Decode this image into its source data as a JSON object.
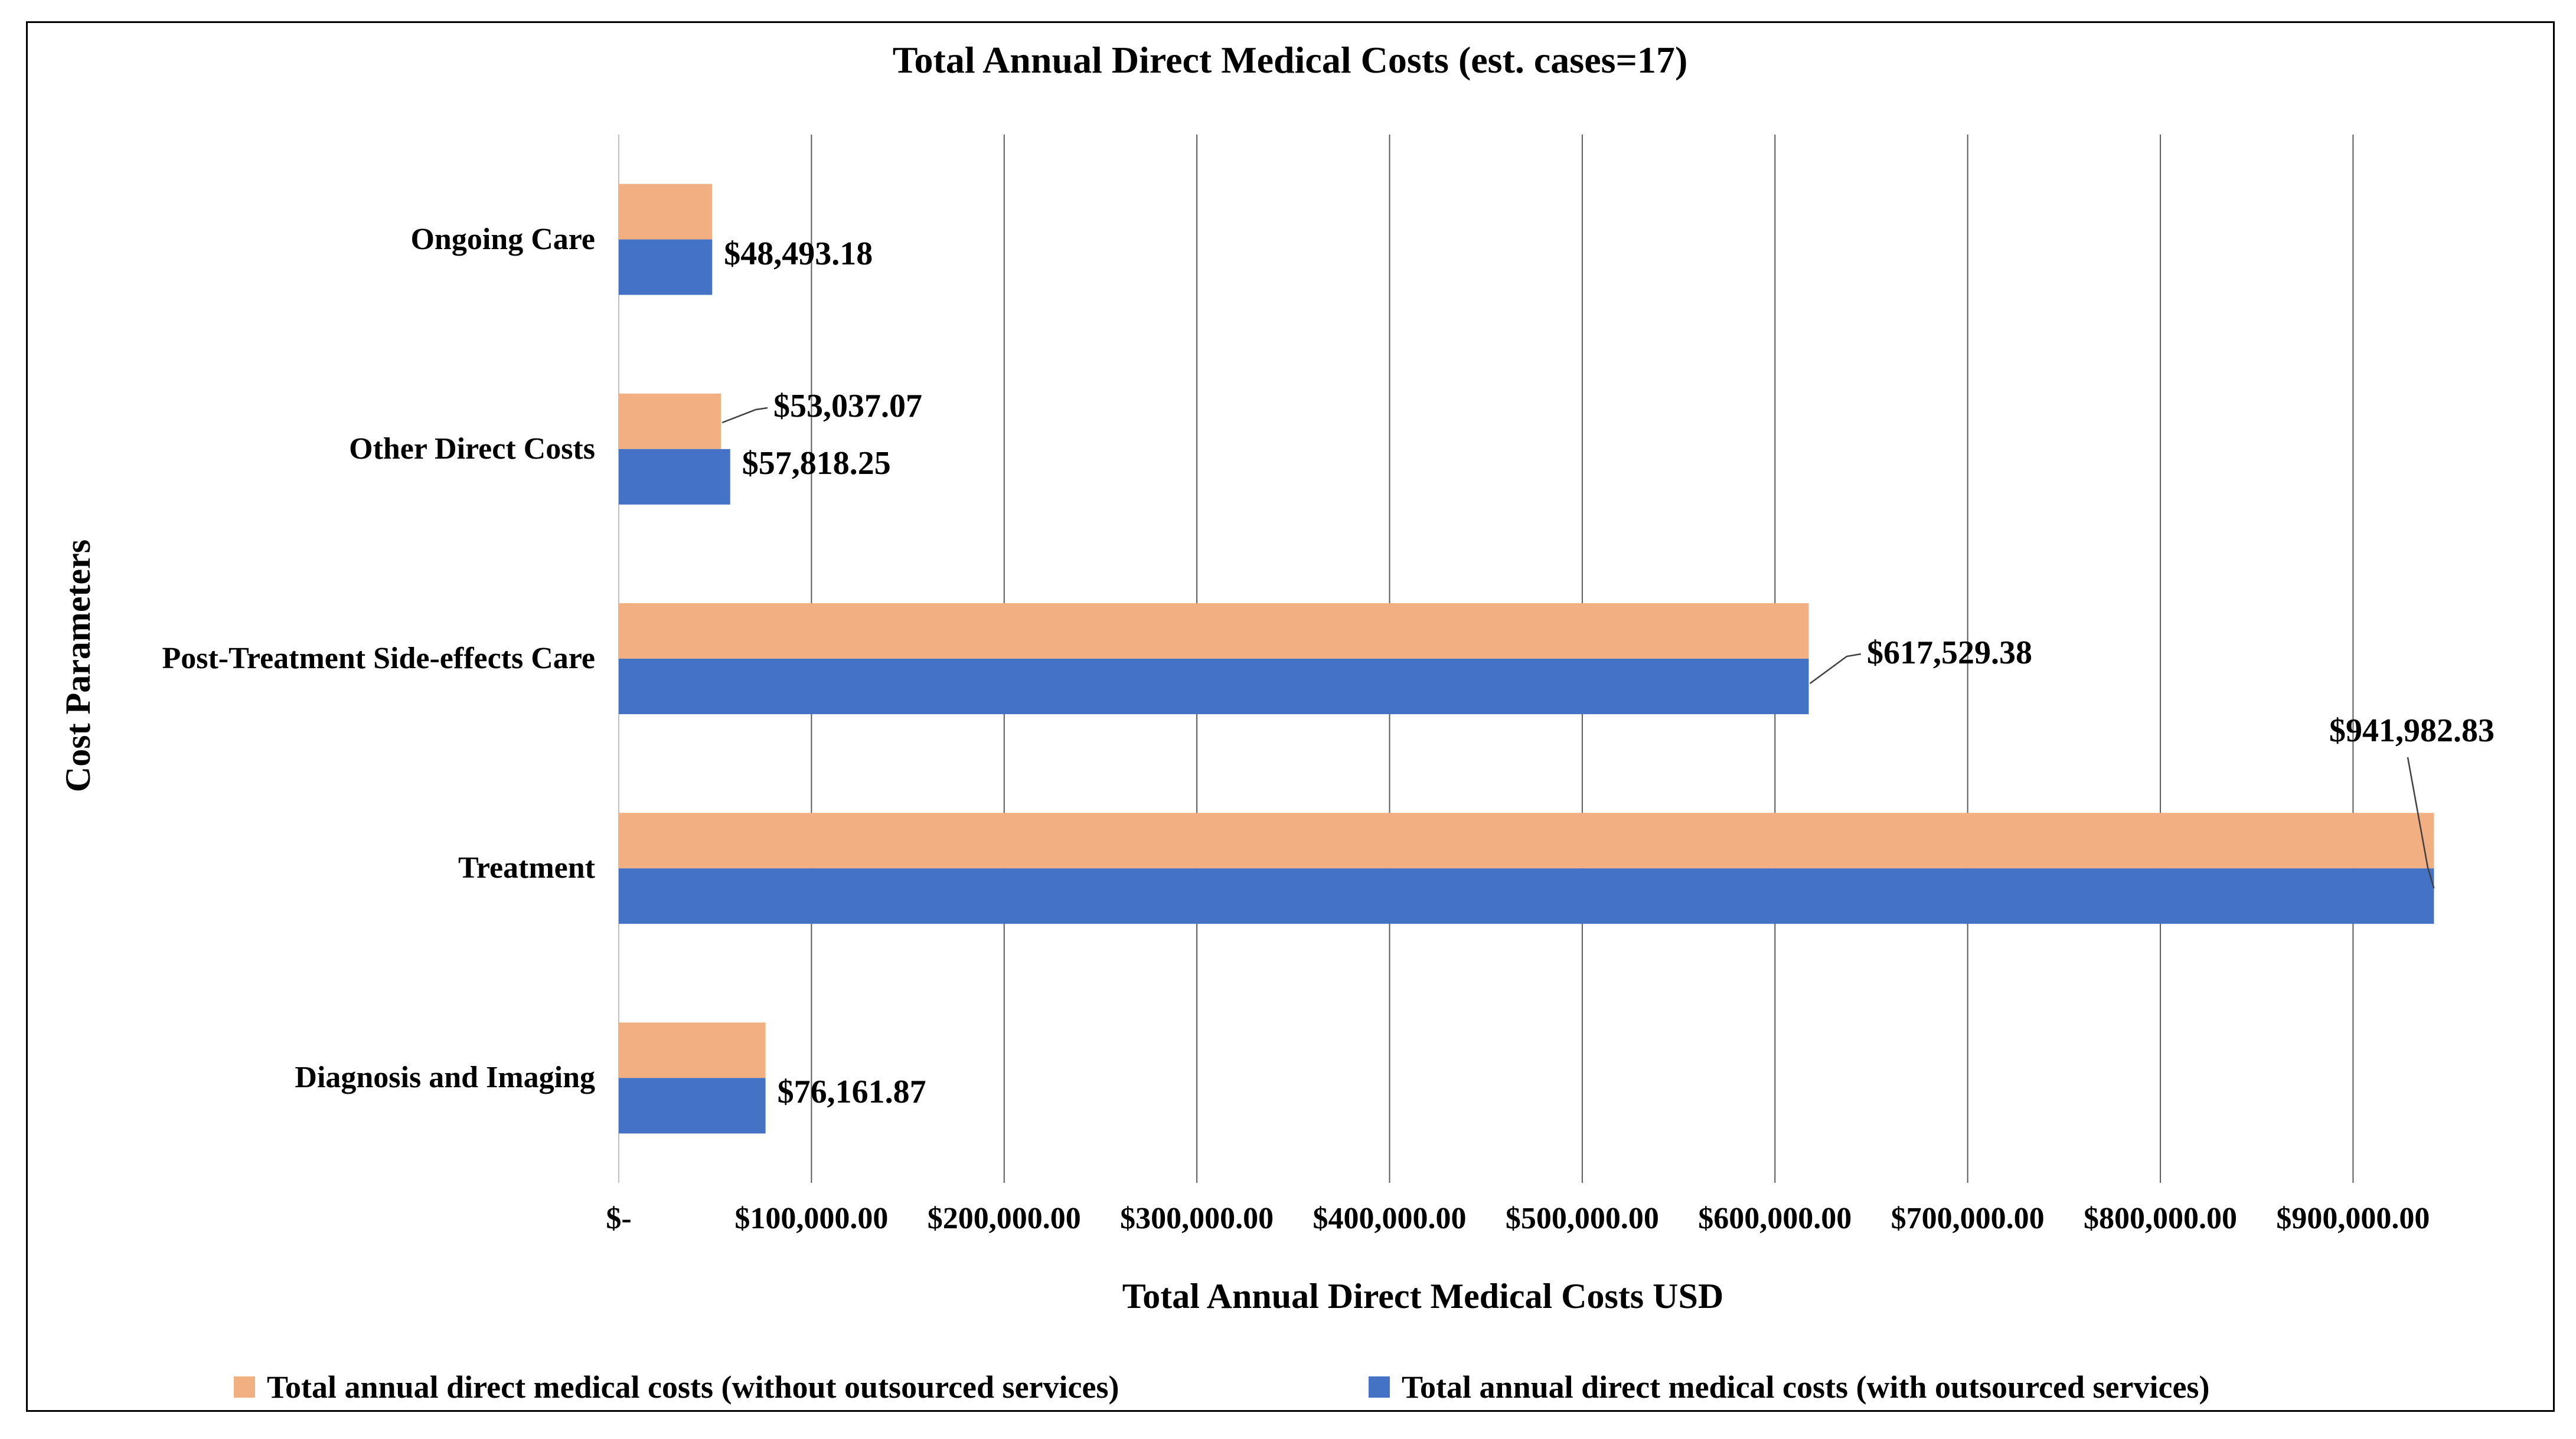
{
  "title": "Total Annual Direct Medical Costs (est. cases=17)",
  "axes": {
    "x_title": "Total Annual Direct Medical Costs USD",
    "y_title": "Cost Parameters"
  },
  "legend": [
    {
      "label": "Total annual direct medical costs (without outsourced services)",
      "color": "#F2AF81"
    },
    {
      "label": "Total annual direct medical costs (with outsourced services)",
      "color": "#4472C4"
    }
  ],
  "chart_data": {
    "type": "bar",
    "orientation": "horizontal-grouped",
    "title": "Total Annual Direct Medical Costs (est. cases=17)",
    "xlabel": "Total Annual Direct Medical Costs USD",
    "ylabel": "Cost Parameters",
    "categories": [
      "Ongoing Care",
      "Other Direct Costs",
      "Post-Treatment Side-effects Care",
      "Treatment",
      "Diagnosis and Imaging"
    ],
    "series": [
      {
        "name": "Total annual direct medical costs (without outsourced services)",
        "color": "#F2AF81",
        "values": [
          48493.18,
          53037.07,
          617529.38,
          941982.83,
          76161.87
        ]
      },
      {
        "name": "Total annual direct medical costs (with outsourced services)",
        "color": "#4472C4",
        "values": [
          48493.18,
          57818.25,
          617529.38,
          941982.83,
          76161.87
        ]
      }
    ],
    "data_labels": [
      {
        "text": "$48,493.18",
        "category": "Ongoing Care",
        "series": "with",
        "placement": "right-of-bar"
      },
      {
        "text": "$53,037.07",
        "category": "Other Direct Costs",
        "series": "without",
        "placement": "callout-above-right"
      },
      {
        "text": "$57,818.25",
        "category": "Other Direct Costs",
        "series": "with",
        "placement": "right-of-bar"
      },
      {
        "text": "$617,529.38",
        "category": "Post-Treatment Side-effects Care",
        "series": "with",
        "placement": "callout-right"
      },
      {
        "text": "$941,982.83",
        "category": "Treatment",
        "series": "with",
        "placement": "callout-above"
      },
      {
        "text": "$76,161.87",
        "category": "Diagnosis and Imaging",
        "series": "with",
        "placement": "right-of-bar"
      }
    ],
    "x_ticks": [
      "$-",
      "$100,000.00",
      "$200,000.00",
      "$300,000.00",
      "$400,000.00",
      "$500,000.00",
      "$600,000.00",
      "$700,000.00",
      "$800,000.00",
      "$900,000.00"
    ],
    "xlim": [
      0,
      1000000
    ],
    "x_gridline_step": 100000,
    "gridlines": true,
    "legend_position": "bottom"
  },
  "colors": {
    "grid": "#595959",
    "zero_line": "#BFBFBF",
    "leader": "#404040",
    "border": "#000000",
    "background": "#FFFFFF"
  }
}
